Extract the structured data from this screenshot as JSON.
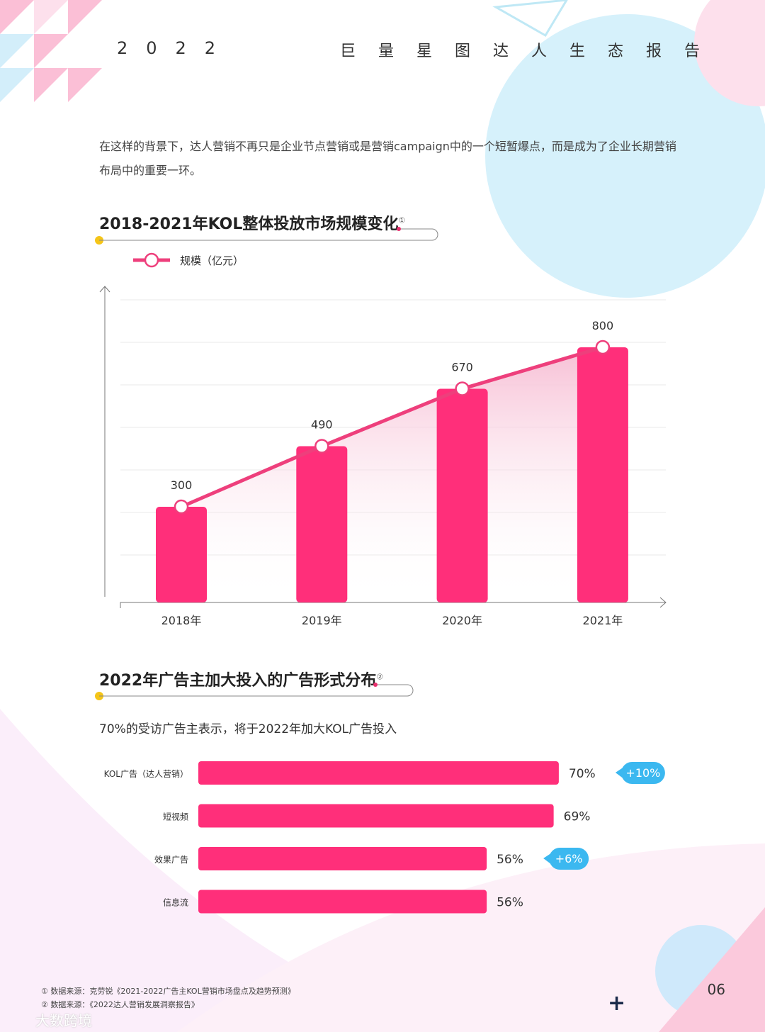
{
  "header": {
    "year": "2022",
    "title": "巨量星图达人生态报告"
  },
  "intro": "在这样的背景下，达人营销不再只是企业节点营销或是营销campaign中的一个短暂爆点，而是成为了企业长期营销布局中的重要一环。",
  "chart1_title": "2018-2021年KOL整体投放市场规模变化",
  "chart1_note": "①",
  "chart2_title": "2022年广告主加大投入的广告形式分布",
  "chart2_note": "②",
  "chart2_subtitle": "70%的受访广告主表示，将于2022年加大KOL广告投入",
  "chart_data": [
    {
      "type": "bar",
      "categories": [
        "2018年",
        "2019年",
        "2020年",
        "2021年"
      ],
      "series": [
        {
          "name": "规模（亿元）",
          "values": [
            300,
            490,
            670,
            800
          ]
        }
      ],
      "overlay": "line",
      "grid": true,
      "color": "#ff2f7a"
    },
    {
      "type": "bar",
      "orientation": "horizontal",
      "categories": [
        "KOL广告（达人营销）",
        "短视频",
        "效果广告",
        "信息流"
      ],
      "values": [
        70,
        69,
        56,
        56
      ],
      "value_labels": [
        "70%",
        "69%",
        "56%",
        "56%"
      ],
      "annotations": [
        "+10%",
        "",
        "+6%",
        ""
      ],
      "color": "#ff2f7a",
      "annotation_color": "#3bb8f0"
    }
  ],
  "footnotes": [
    "① 数据来源：克劳锐《2021-2022广告主KOL营销市场盘点及趋势预测》",
    "② 数据来源：《2022达人营销发展洞察报告》"
  ],
  "watermark": "大数跨境",
  "page_number": "06"
}
